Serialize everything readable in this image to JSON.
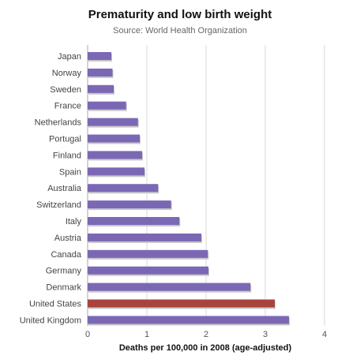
{
  "chart_data": {
    "type": "bar",
    "orientation": "horizontal",
    "title": "Prematurity and low birth weight",
    "subtitle": "Source: World Health Organization",
    "xlabel": "Deaths per 100,000 in 2008 (age-adjusted)",
    "ylabel": "",
    "xlim": [
      0,
      4
    ],
    "xticks": [
      "0",
      "1",
      "2",
      "3",
      "4"
    ],
    "grid": true,
    "categories": [
      "Japan",
      "Norway",
      "Sweden",
      "France",
      "Netherlands",
      "Portugal",
      "Finland",
      "Spain",
      "Australia",
      "Switzerland",
      "Italy",
      "Austria",
      "Canada",
      "Germany",
      "Denmark",
      "United States",
      "United Kingdom"
    ],
    "values": [
      0.4,
      0.42,
      0.44,
      0.65,
      0.85,
      0.88,
      0.92,
      0.96,
      1.19,
      1.41,
      1.55,
      1.92,
      2.03,
      2.04,
      2.75,
      3.16,
      3.4
    ],
    "highlight": "United States",
    "colors": {
      "bar": "#7b68b5",
      "highlight": "#a8433d",
      "grid": "#d9d9d9",
      "axis": "#aaaaaa"
    }
  }
}
